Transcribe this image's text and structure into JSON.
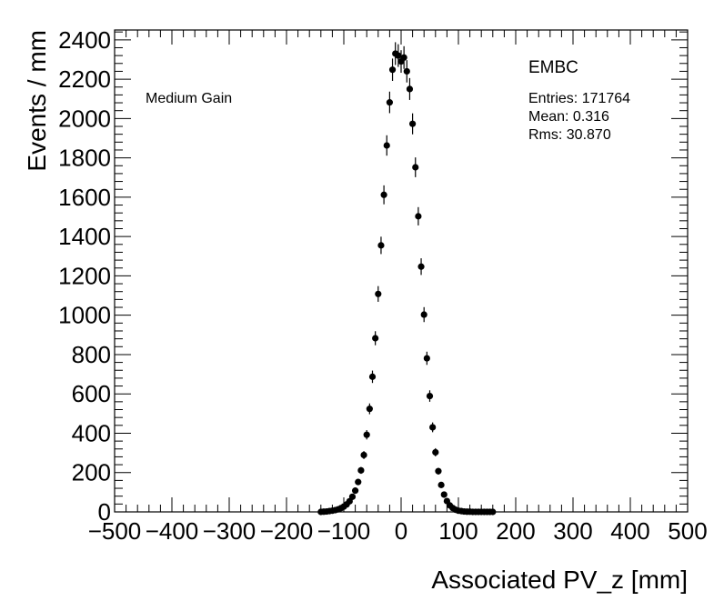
{
  "chart_data": {
    "type": "scatter",
    "title": "EMBC",
    "subtitle": "Medium Gain",
    "xlabel": "Associated PV_z [mm]",
    "ylabel": "Events / mm",
    "xlim": [
      -500,
      500
    ],
    "ylim": [
      0,
      2450
    ],
    "xticks": [
      -500,
      -400,
      -300,
      -200,
      -100,
      0,
      100,
      200,
      300,
      400,
      500
    ],
    "yticks": [
      0,
      200,
      400,
      600,
      800,
      1000,
      1200,
      1400,
      1600,
      1800,
      2000,
      2200,
      2400
    ],
    "grid": false,
    "series": [
      {
        "name": "EMBC Medium Gain",
        "x": [
          -140,
          -135,
          -130,
          -125,
          -120,
          -115,
          -110,
          -105,
          -100,
          -95,
          -90,
          -85,
          -80,
          -75,
          -70,
          -65,
          -60,
          -55,
          -50,
          -45,
          -40,
          -35,
          -30,
          -25,
          -20,
          -15,
          -10,
          -5,
          0,
          5,
          10,
          15,
          20,
          25,
          30,
          35,
          40,
          45,
          50,
          55,
          60,
          65,
          70,
          75,
          80,
          85,
          90,
          95,
          100,
          105,
          110,
          115,
          120,
          125,
          130,
          135,
          140,
          145,
          150,
          155,
          160
        ],
        "values": [
          0,
          1,
          2,
          4,
          6,
          9,
          13,
          19,
          27,
          38,
          54,
          77,
          108,
          152,
          211,
          289,
          392,
          524,
          687,
          883,
          1108,
          1355,
          1612,
          1863,
          2082,
          2248,
          2330,
          2320,
          2290,
          2310,
          2240,
          2150,
          1973,
          1752,
          1503,
          1247,
          1003,
          781,
          589,
          430,
          303,
          207,
          137,
          88,
          55,
          33,
          20,
          11,
          6,
          4,
          2,
          1,
          1,
          0,
          0,
          0,
          0,
          0,
          0,
          0,
          0
        ]
      }
    ]
  },
  "stats": {
    "entries": "Entries: 171764",
    "mean": "Mean: 0.316",
    "rms": "Rms: 30.870"
  }
}
